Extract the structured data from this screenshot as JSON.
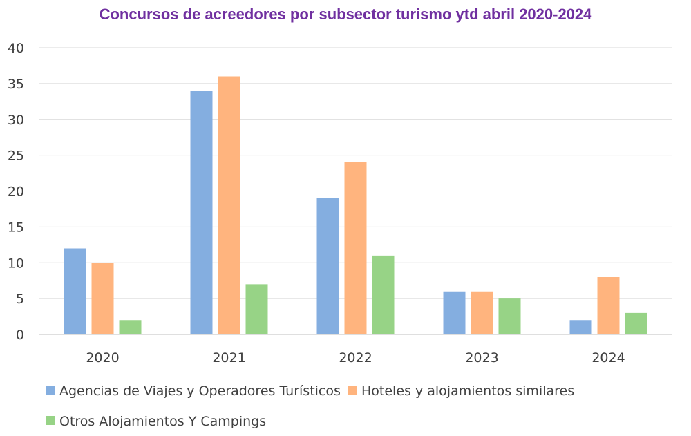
{
  "chart_data": {
    "type": "bar",
    "title": "Concursos de acreedores por subsector turismo ytd abril 2020-2024",
    "categories": [
      "2020",
      "2021",
      "2022",
      "2023",
      "2024"
    ],
    "series": [
      {
        "name": "Agencias de Viajes y Operadores Turísticos",
        "color": "#84aee0",
        "values": [
          12,
          34,
          19,
          6,
          2
        ]
      },
      {
        "name": "Hoteles y alojamientos similares",
        "color": "#ffb47e",
        "values": [
          10,
          36,
          24,
          6,
          8
        ]
      },
      {
        "name": "Otros Alojamientos Y Campings",
        "color": "#97d386",
        "values": [
          2,
          7,
          11,
          5,
          3
        ]
      }
    ],
    "ylim": [
      0,
      40
    ],
    "yticks": [
      0,
      5,
      10,
      15,
      20,
      25,
      30,
      35,
      40
    ],
    "xlabel": "",
    "ylabel": "",
    "grid": true,
    "legend_position": "bottom-left"
  }
}
